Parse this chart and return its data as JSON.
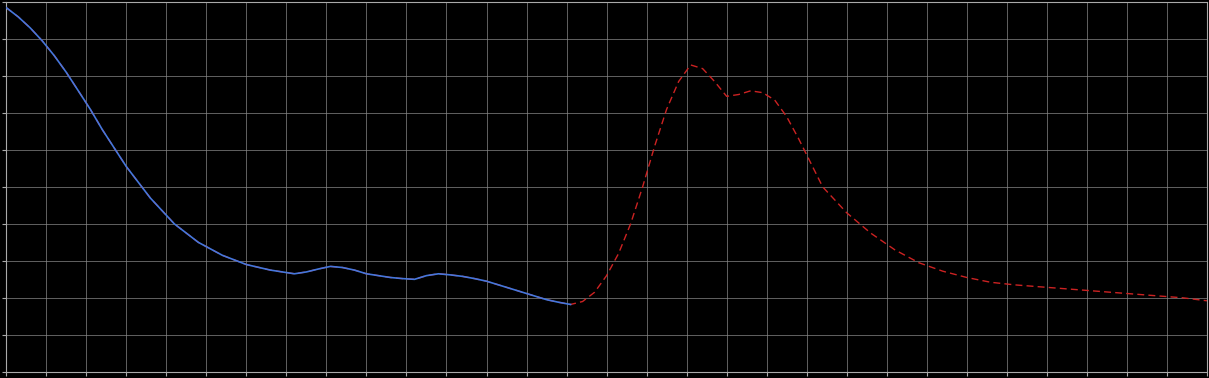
{
  "background_color": "#000000",
  "grid_color": "#888888",
  "axes_color": "#aaaaaa",
  "blue_line_color": "#4477DD",
  "red_line_color": "#CC2222",
  "figsize": [
    12.09,
    3.78
  ],
  "dpi": 100,
  "xlim": [
    0,
    100
  ],
  "ylim": [
    0,
    10
  ],
  "blue_x": [
    0,
    1,
    2,
    3,
    4,
    5,
    6,
    7,
    8,
    10,
    12,
    14,
    16,
    18,
    20,
    22,
    24,
    25,
    26,
    27,
    28,
    29,
    30,
    31,
    32,
    33,
    34,
    35,
    36,
    37,
    38,
    39,
    40,
    41,
    42,
    43,
    44,
    45,
    46,
    47
  ],
  "blue_y": [
    9.85,
    9.6,
    9.3,
    8.95,
    8.55,
    8.1,
    7.6,
    7.1,
    6.55,
    5.55,
    4.7,
    4.0,
    3.5,
    3.15,
    2.9,
    2.75,
    2.65,
    2.7,
    2.78,
    2.85,
    2.82,
    2.75,
    2.65,
    2.6,
    2.55,
    2.52,
    2.5,
    2.6,
    2.65,
    2.62,
    2.58,
    2.52,
    2.45,
    2.35,
    2.25,
    2.15,
    2.05,
    1.95,
    1.88,
    1.82
  ],
  "red_x": [
    0,
    1,
    2,
    3,
    4,
    5,
    6,
    7,
    8,
    10,
    12,
    14,
    16,
    18,
    20,
    22,
    24,
    25,
    26,
    27,
    28,
    29,
    30,
    31,
    32,
    33,
    34,
    35,
    36,
    37,
    38,
    39,
    40,
    41,
    42,
    43,
    44,
    45,
    46,
    47,
    48,
    49,
    50,
    51,
    52,
    53,
    54,
    55,
    56,
    57,
    58,
    59,
    60,
    61,
    62,
    63,
    64,
    65,
    66,
    67,
    68,
    70,
    72,
    74,
    76,
    78,
    80,
    82,
    84,
    86,
    88,
    90,
    92,
    94,
    96,
    98,
    100
  ],
  "red_y": [
    9.85,
    9.6,
    9.3,
    8.95,
    8.55,
    8.1,
    7.6,
    7.1,
    6.55,
    5.55,
    4.7,
    4.0,
    3.5,
    3.15,
    2.9,
    2.75,
    2.65,
    2.7,
    2.78,
    2.85,
    2.82,
    2.75,
    2.65,
    2.6,
    2.55,
    2.52,
    2.5,
    2.6,
    2.65,
    2.62,
    2.58,
    2.52,
    2.45,
    2.35,
    2.25,
    2.15,
    2.05,
    1.95,
    1.88,
    1.82,
    1.9,
    2.15,
    2.6,
    3.2,
    4.0,
    5.0,
    6.1,
    7.1,
    7.85,
    8.3,
    8.2,
    7.85,
    7.45,
    7.5,
    7.6,
    7.55,
    7.35,
    6.9,
    6.3,
    5.65,
    5.0,
    4.3,
    3.75,
    3.3,
    2.95,
    2.72,
    2.55,
    2.42,
    2.35,
    2.3,
    2.25,
    2.2,
    2.15,
    2.1,
    2.05,
    2.0,
    1.92
  ]
}
